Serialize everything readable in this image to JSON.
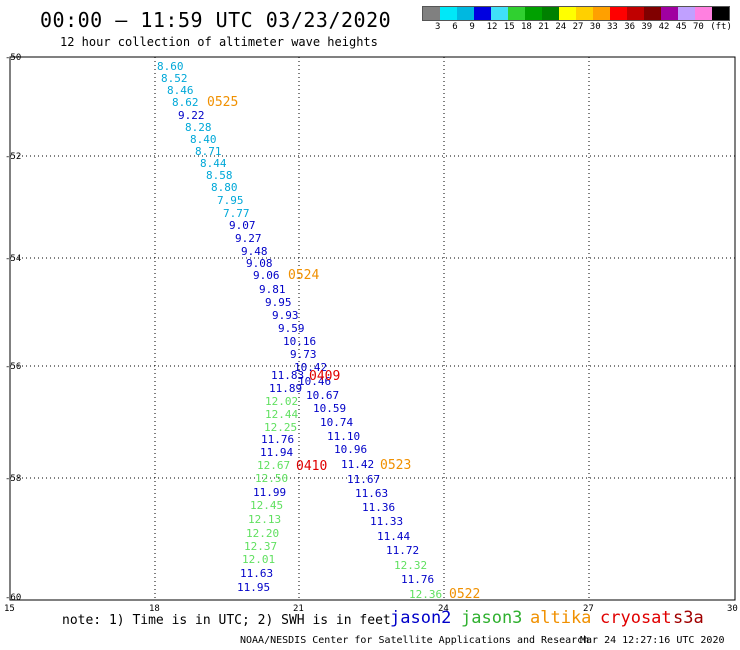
{
  "title": "00:00 — 11:59 UTC 03/23/2020",
  "subtitle": "12 hour collection of altimeter wave heights",
  "scale": {
    "colors": [
      "#808080",
      "#00e8f8",
      "#00b8e0",
      "#0000e0",
      "#40e0f8",
      "#30d030",
      "#00a000",
      "#008000",
      "#ffff00",
      "#ffd000",
      "#ffa000",
      "#ff0000",
      "#c00000",
      "#800000",
      "#a000a0",
      "#c0a0ff",
      "#ff80e0",
      "#000000"
    ],
    "labels": [
      "3",
      "6",
      "9",
      "12",
      "15",
      "18",
      "21",
      "24",
      "27",
      "30",
      "33",
      "36",
      "39",
      "42",
      "45",
      "70",
      "(ft)"
    ]
  },
  "axes": {
    "x_ticks": [
      "15",
      "18",
      "21",
      "24",
      "27",
      "30"
    ],
    "y_ticks": [
      "-50",
      "-52",
      "-54",
      "-56",
      "-58",
      "-60"
    ]
  },
  "satellite_colors": {
    "jason2": "#0000c8",
    "jason3": "#30b030",
    "jason3_light": "#60e060",
    "altika": "#f09000",
    "cryosat": "#e00000",
    "s3a": "#a00000",
    "cyan": "#00a8d8"
  },
  "passes": [
    {
      "sat": "cyan",
      "values": [
        "8.60",
        "8.52",
        "8.46",
        "8.62"
      ],
      "time": "0525"
    },
    {
      "sat": "mixed",
      "values": [
        "9.22",
        "8.28",
        "8.40",
        "8.71",
        "8.44",
        "8.58",
        "8.80",
        "7.95",
        "7.77",
        "9.07",
        "9.27",
        "9.48",
        "9.08",
        "9.06",
        "9.81",
        "9.95",
        "9.93",
        "9.59",
        "10.16",
        "9.73",
        "10.42",
        "10.46",
        "10.67",
        "10.59",
        "10.74",
        "11.10",
        "10.96",
        "11.42",
        "11.67",
        "11.63",
        "11.36",
        "11.33",
        "11.44",
        "11.72",
        "12.32",
        "11.76",
        "12.36"
      ]
    },
    {
      "sat": "jason3",
      "values": [
        "11.83",
        "11.89",
        "12.02",
        "12.44",
        "12.25",
        "11.76",
        "11.94",
        "12.67",
        "12.50",
        "11.99",
        "12.45",
        "12.13",
        "12.20",
        "12.37",
        "12.01",
        "11.63",
        "11.95"
      ]
    }
  ],
  "times": [
    "0525",
    "0524",
    "0409",
    "0523",
    "0410",
    "0522"
  ],
  "note": "note: 1) Time is in UTC; 2) SWH is in feet",
  "legend": {
    "jason2": "jason2",
    "jason3": "jason3",
    "altika": "altika",
    "cryosat": "cryosat",
    "s3a": "s3a"
  },
  "credit": "NOAA/NESDIS Center for Satellite Applications and Research",
  "timestamp": "Mar 24 12:27:16 UTC 2020"
}
